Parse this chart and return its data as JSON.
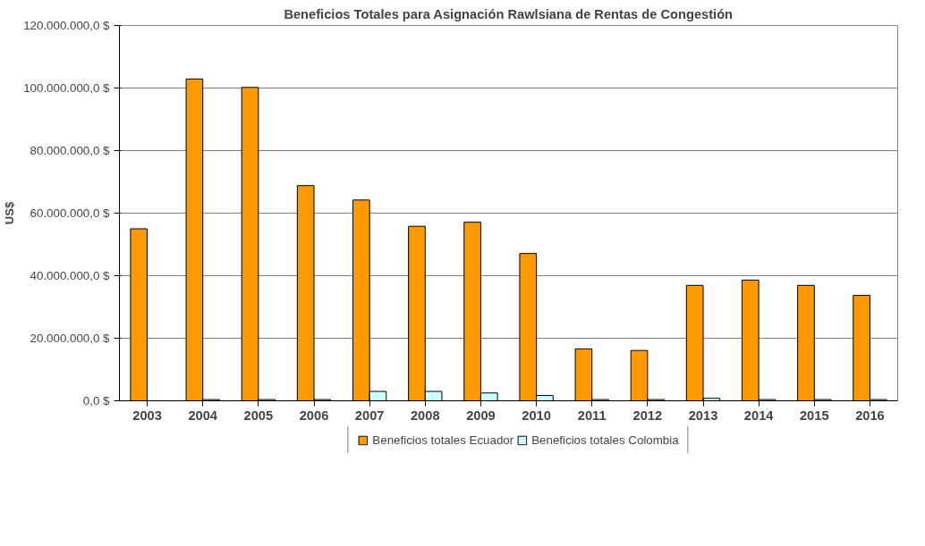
{
  "chart_data": {
    "type": "bar",
    "title": "Beneficios Totales para Asignación Rawlsiana de Rentas de Congestión",
    "ylabel": "US$",
    "categories": [
      "2003",
      "2004",
      "2005",
      "2006",
      "2007",
      "2008",
      "2009",
      "2010",
      "2011",
      "2012",
      "2013",
      "2014",
      "2015",
      "2016"
    ],
    "series": [
      {
        "name": "Beneficios totales Ecuador",
        "color": "#ff9900",
        "values": [
          55000000.0,
          102900000.0,
          100200000.0,
          68800000.0,
          64200000.0,
          55800000.0,
          57100000.0,
          47100000.0,
          16600000.0,
          16100000.0,
          36900000.0,
          38600000.0,
          36900000.0,
          33700000.0
        ]
      },
      {
        "name": "Beneficios totales Colombia",
        "color": "#ccffff",
        "values": [
          null,
          400000.0,
          400000.0,
          400000.0,
          3000000.0,
          3000000.0,
          2500000.0,
          1700000.0,
          400000.0,
          400000.0,
          800000.0,
          400000.0,
          400000.0,
          400000.0
        ]
      }
    ],
    "ylim": [
      0,
      120000000
    ],
    "yticks": [
      {
        "value": 0,
        "label": "0,0 $"
      },
      {
        "value": 20000000,
        "label": "20.000.000,0 $"
      },
      {
        "value": 40000000,
        "label": "40.000.000,0 $"
      },
      {
        "value": 60000000,
        "label": "60.000.000,0 $"
      },
      {
        "value": 80000000,
        "label": "80.000.000,0 $"
      },
      {
        "value": 100000000,
        "label": "100.000.000,0 $"
      },
      {
        "value": 120000000,
        "label": "120.000.000,0 $"
      }
    ],
    "grid": "y",
    "legend": "bottom"
  }
}
